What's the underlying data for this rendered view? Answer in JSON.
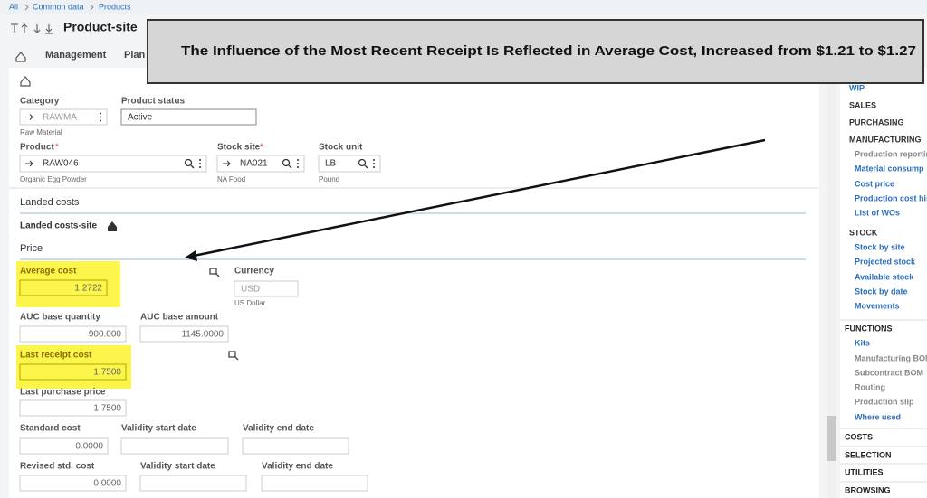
{
  "breadcrumb": [
    "All",
    "Common data",
    "Products"
  ],
  "page_title": "Product-site",
  "tabs": [
    "Management",
    "Plan"
  ],
  "callout": "The Influence of the Most Recent Receipt Is Reflected in Average Cost, Increased from $1.21 to $1.27",
  "form": {
    "category": {
      "label": "Category",
      "value": "RAWMA",
      "description": "Raw Material"
    },
    "product_status": {
      "label": "Product status",
      "value": "Active"
    },
    "product": {
      "label": "Product",
      "required": "*",
      "value": "RAW046",
      "description": "Organic Egg Powder"
    },
    "stock_site": {
      "label": "Stock site",
      "required": "*",
      "value": "NA021",
      "description": "NA Food"
    },
    "stock_unit": {
      "label": "Stock unit",
      "value": "LB",
      "description": "Pound"
    }
  },
  "sections": {
    "landed_costs": "Landed costs",
    "landed_costs_site": "Landed costs-site",
    "price": "Price"
  },
  "price": {
    "average_cost": {
      "label": "Average cost",
      "value": "1.2722"
    },
    "currency": {
      "label": "Currency",
      "value": "USD",
      "description": "US Dollar"
    },
    "auc_base_quantity": {
      "label": "AUC base quantity",
      "value": "900.000"
    },
    "auc_base_amount": {
      "label": "AUC base amount",
      "value": "1145.0000"
    },
    "last_receipt_cost": {
      "label": "Last receipt cost",
      "value": "1.7500"
    },
    "last_purchase_price": {
      "label": "Last purchase price",
      "value": "1.7500"
    },
    "standard_cost": {
      "label": "Standard cost",
      "value": "0.0000"
    },
    "validity_start_date": {
      "label": "Validity start date"
    },
    "validity_end_date": {
      "label": "Validity end date"
    },
    "revised_std_cost": {
      "label": "Revised std. cost",
      "value": "0.0000"
    },
    "revised_validity_start_date": {
      "label": "Validity start date"
    },
    "revised_validity_end_date": {
      "label": "Validity end date"
    }
  },
  "sidebar": [
    {
      "text": "WIP",
      "kind": "link"
    },
    {
      "text": "SALES",
      "kind": "header"
    },
    {
      "text": "PURCHASING",
      "kind": "header"
    },
    {
      "text": "MANUFACTURING",
      "kind": "header"
    },
    {
      "text": "Production reportin",
      "kind": "gray"
    },
    {
      "text": "Material consump",
      "kind": "link"
    },
    {
      "text": "Cost price",
      "kind": "link"
    },
    {
      "text": "Production cost his",
      "kind": "link"
    },
    {
      "text": "List of WOs",
      "kind": "link"
    },
    {
      "text": "STOCK",
      "kind": "header"
    },
    {
      "text": "Stock by site",
      "kind": "link"
    },
    {
      "text": "Projected stock",
      "kind": "link"
    },
    {
      "text": "Available stock",
      "kind": "link"
    },
    {
      "text": "Stock by date",
      "kind": "link"
    },
    {
      "text": "Movements",
      "kind": "link"
    },
    {
      "text": "FUNCTIONS",
      "kind": "section"
    },
    {
      "text": "Kits",
      "kind": "link"
    },
    {
      "text": "Manufacturing BOM",
      "kind": "gray"
    },
    {
      "text": "Subcontract BOM",
      "kind": "gray"
    },
    {
      "text": "Routing",
      "kind": "gray"
    },
    {
      "text": "Production slip",
      "kind": "gray"
    },
    {
      "text": "Where used",
      "kind": "link"
    },
    {
      "text": "COSTS",
      "kind": "section"
    },
    {
      "text": "SELECTION",
      "kind": "section"
    },
    {
      "text": "UTILITIES",
      "kind": "section"
    },
    {
      "text": "BROWSING",
      "kind": "section"
    }
  ]
}
